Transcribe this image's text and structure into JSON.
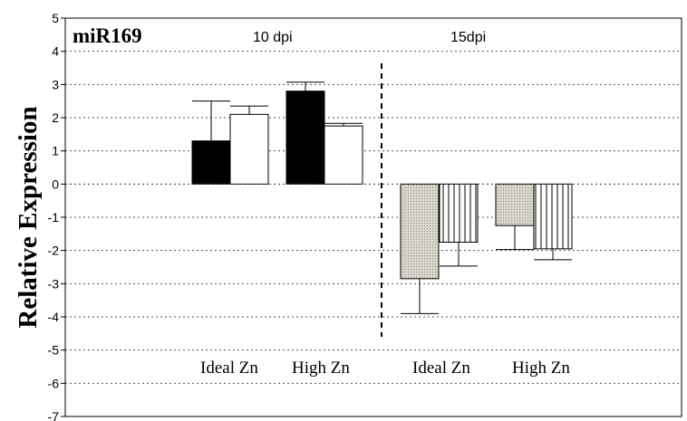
{
  "chart_data": {
    "type": "bar",
    "title": "miR169",
    "ylabel": "Relative Expression",
    "xlabel": "",
    "ylim": [
      -7,
      5
    ],
    "yticks": [
      5,
      4,
      3,
      2,
      1,
      0,
      -1,
      -2,
      -3,
      -4,
      -5,
      -6,
      -7
    ],
    "grid": "horizontal-dotted",
    "groups": [
      {
        "label": "10 dpi",
        "categories": [
          {
            "label": "Ideal Zn",
            "bars": [
              {
                "value": 1.3,
                "error": 1.2,
                "fill": "black"
              },
              {
                "value": 2.1,
                "error": 0.25,
                "fill": "white"
              }
            ]
          },
          {
            "label": "High Zn",
            "bars": [
              {
                "value": 2.8,
                "error": 0.27,
                "fill": "black"
              },
              {
                "value": 1.75,
                "error": 0.08,
                "fill": "white"
              }
            ]
          }
        ]
      },
      {
        "label": "15dpi",
        "categories": [
          {
            "label": "Ideal Zn",
            "bars": [
              {
                "value": -2.85,
                "error": 1.05,
                "fill": "dotted"
              },
              {
                "value": -1.75,
                "error": 0.72,
                "fill": "vertical-lines"
              }
            ]
          },
          {
            "label": "High Zn",
            "bars": [
              {
                "value": -1.25,
                "error": 0.72,
                "fill": "dotted"
              },
              {
                "value": -1.95,
                "error": 0.33,
                "fill": "vertical-lines"
              }
            ]
          }
        ]
      }
    ],
    "colors": {
      "solid": "#000000",
      "open": "#ffffff",
      "dotted_bg": "#e4e2d8",
      "dotted_dot": "#7a786e",
      "lines": "#000000"
    }
  }
}
